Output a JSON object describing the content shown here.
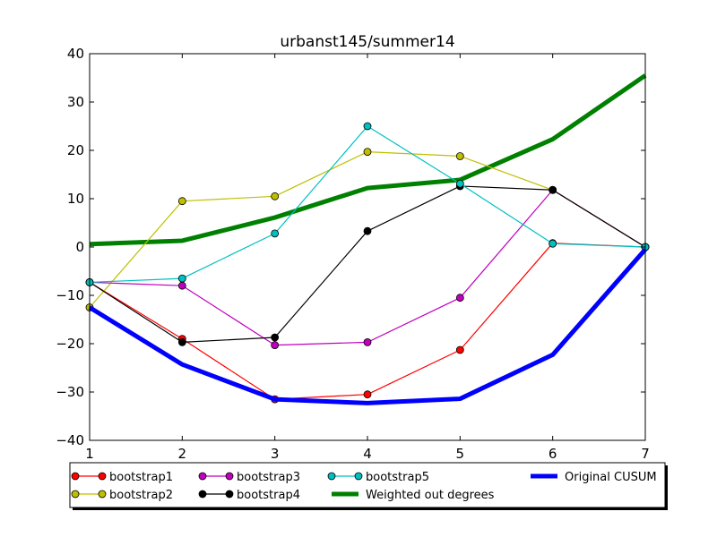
{
  "chart_data": {
    "type": "line",
    "title": "urbanst145/summer14",
    "xlabel": "",
    "ylabel": "",
    "xlim": [
      1,
      7
    ],
    "ylim": [
      -40,
      40
    ],
    "x": [
      1,
      2,
      3,
      4,
      5,
      6,
      7
    ],
    "xticks": [
      "1",
      "2",
      "3",
      "4",
      "5",
      "6",
      "7"
    ],
    "yticks": [
      "−40",
      "−30",
      "−20",
      "−10",
      "0",
      "10",
      "20",
      "30",
      "40"
    ],
    "yticks_values": [
      -40,
      -30,
      -20,
      -10,
      0,
      10,
      20,
      30,
      40
    ],
    "grid": false,
    "legend_position": "below-plot",
    "series": [
      {
        "name": "bootstrap1",
        "color": "#ff0000",
        "marker": "circle",
        "values": [
          -7.3,
          -19.0,
          -31.5,
          -30.5,
          -21.3,
          0.8,
          0.0
        ]
      },
      {
        "name": "bootstrap2",
        "color": "#bfbf00",
        "marker": "circle",
        "values": [
          -12.5,
          9.5,
          10.5,
          19.7,
          18.8,
          11.8,
          0.0
        ]
      },
      {
        "name": "bootstrap3",
        "color": "#bf00bf",
        "marker": "circle",
        "values": [
          -7.3,
          -8.0,
          -20.3,
          -19.7,
          -10.5,
          11.8,
          0.0
        ]
      },
      {
        "name": "bootstrap4",
        "color": "#000000",
        "marker": "circle",
        "values": [
          -7.3,
          -19.7,
          -18.7,
          3.3,
          12.6,
          11.8,
          0.0
        ]
      },
      {
        "name": "bootstrap5",
        "color": "#00bfbf",
        "marker": "circle",
        "values": [
          -7.3,
          -6.5,
          2.8,
          25.0,
          13.1,
          0.7,
          0.0
        ]
      },
      {
        "name": "Weighted out degrees",
        "color": "#008000",
        "marker": "none",
        "values": [
          0.6,
          1.3,
          6.1,
          12.2,
          13.9,
          22.3,
          35.5
        ]
      },
      {
        "name": "Original CUSUM",
        "color": "#0000ff",
        "marker": "none",
        "values": [
          -12.5,
          -24.3,
          -31.5,
          -32.3,
          -31.4,
          -22.3,
          -0.5
        ]
      }
    ]
  }
}
